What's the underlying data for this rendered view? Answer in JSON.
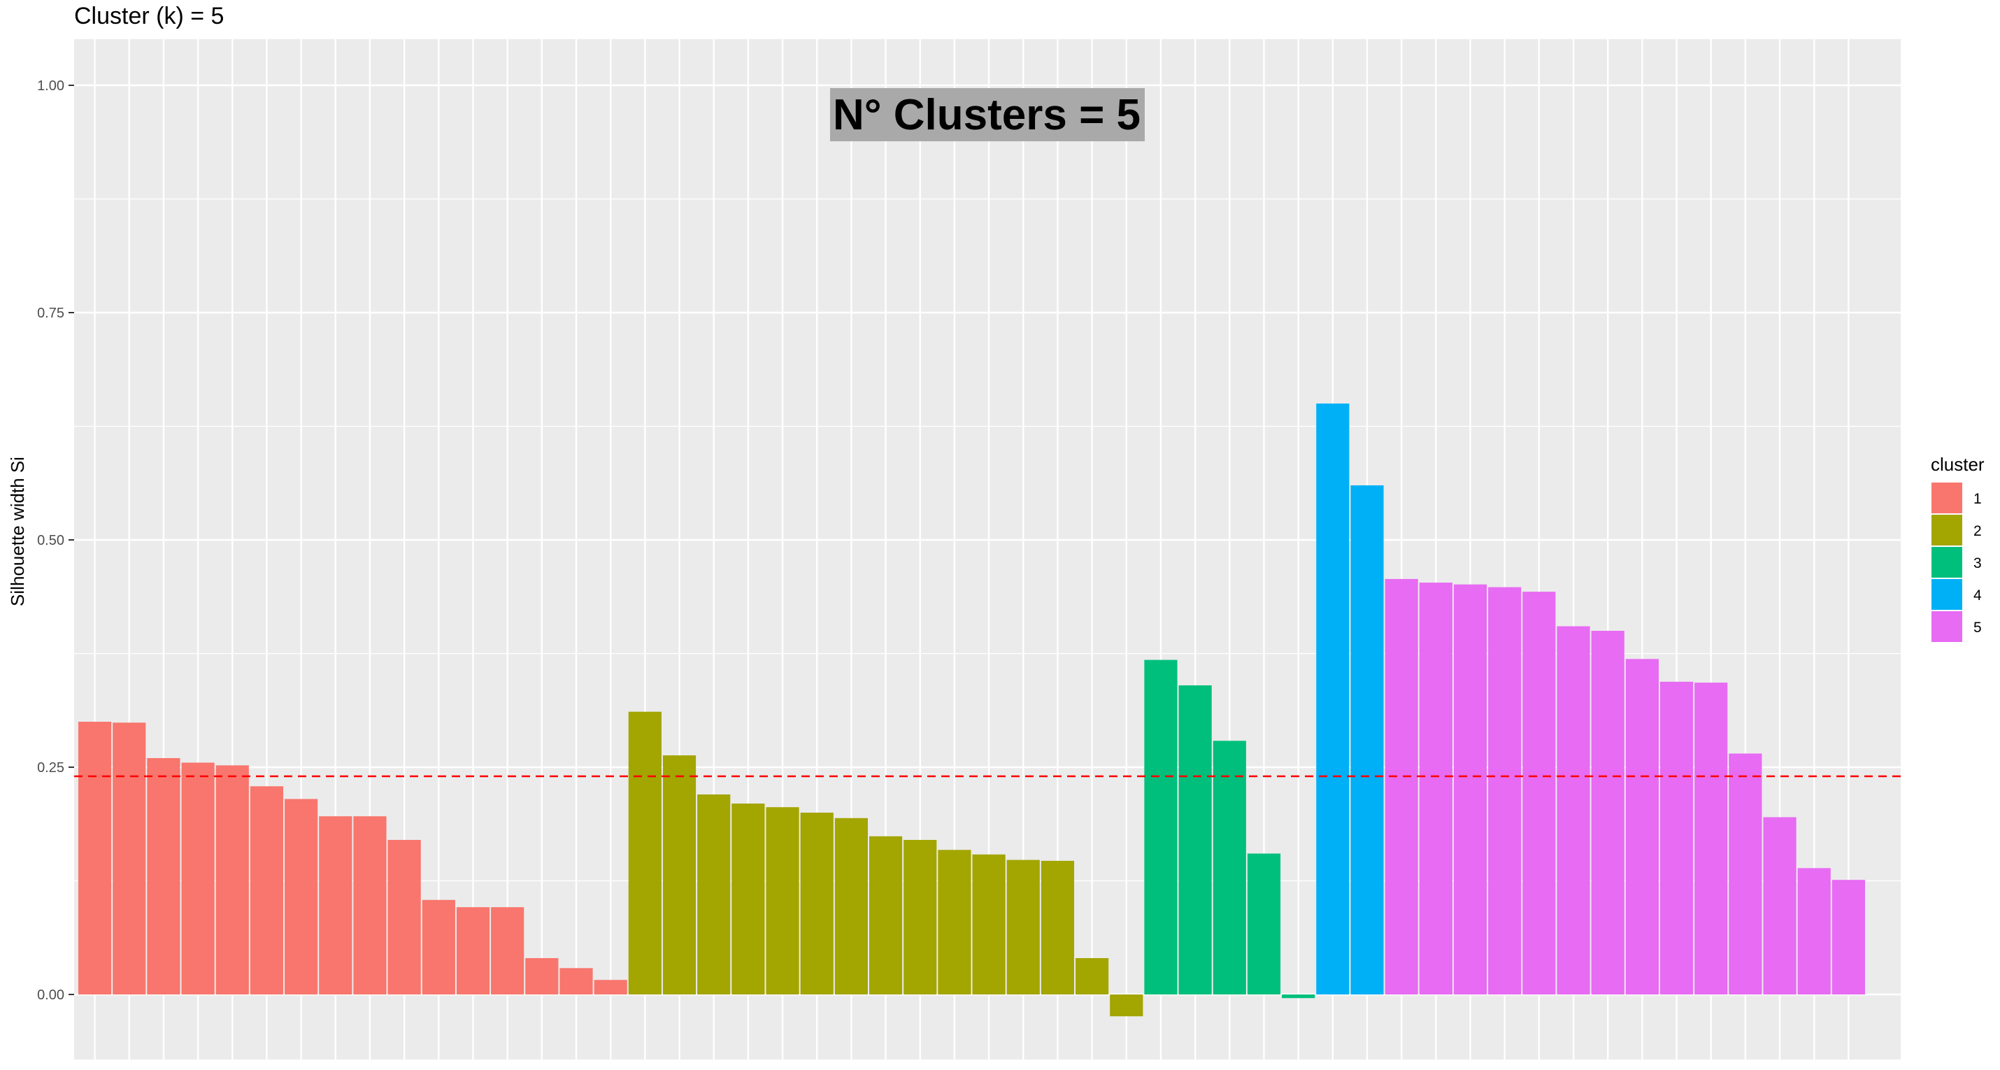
{
  "chart_data": {
    "type": "bar",
    "title": "Cluster (k) = 5",
    "ylabel": "Silhouette width Si",
    "xlabel": "",
    "ylim": [
      -0.07,
      1.05
    ],
    "yticks": [
      "0.00",
      "0.25",
      "0.50",
      "0.75",
      "1.00"
    ],
    "ytick_values": [
      0,
      0.25,
      0.5,
      0.75,
      1.0
    ],
    "grid": true,
    "legend": {
      "title": "cluster",
      "position": "right"
    },
    "annotation": "N° Clusters = 5",
    "reference_line": {
      "value": 0.24,
      "style": "dashed",
      "color": "#FF0000"
    },
    "series": [
      {
        "name": "1",
        "color": "#F8766D",
        "values": [
          0.3,
          0.299,
          0.26,
          0.255,
          0.252,
          0.229,
          0.215,
          0.196,
          0.196,
          0.17,
          0.104,
          0.096,
          0.096,
          0.04,
          0.029,
          0.016
        ]
      },
      {
        "name": "2",
        "color": "#A3A500",
        "values": [
          0.311,
          0.263,
          0.22,
          0.21,
          0.206,
          0.2,
          0.194,
          0.174,
          0.17,
          0.159,
          0.154,
          0.148,
          0.147,
          0.04,
          -0.024
        ]
      },
      {
        "name": "3",
        "color": "#00BF7D",
        "values": [
          0.368,
          0.34,
          0.279,
          0.155,
          -0.004
        ]
      },
      {
        "name": "4",
        "color": "#00B0F6",
        "values": [
          0.65,
          0.56
        ]
      },
      {
        "name": "5",
        "color": "#E76BF3",
        "values": [
          0.457,
          0.453,
          0.451,
          0.448,
          0.443,
          0.405,
          0.4,
          0.369,
          0.344,
          0.343,
          0.265,
          0.195,
          0.139,
          0.126
        ]
      }
    ]
  }
}
